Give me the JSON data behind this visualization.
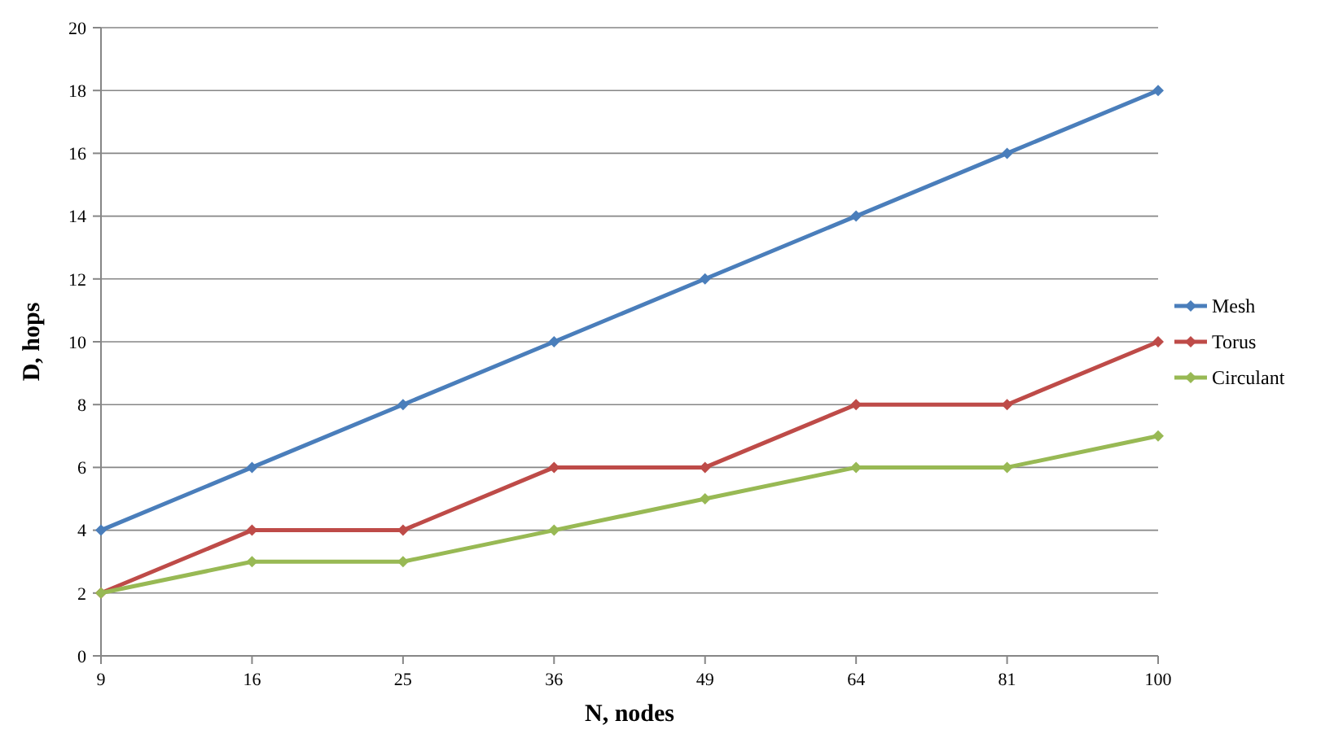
{
  "chart_data": {
    "type": "line",
    "xlabel": "N, nodes",
    "ylabel": "D, hops",
    "categories": [
      "9",
      "16",
      "25",
      "36",
      "49",
      "64",
      "81",
      "100"
    ],
    "series": [
      {
        "name": "Mesh",
        "color": "#4a7ebb",
        "values": [
          4,
          6,
          8,
          10,
          12,
          14,
          16,
          18
        ]
      },
      {
        "name": "Torus",
        "color": "#be4b48",
        "values": [
          2,
          4,
          4,
          6,
          6,
          8,
          8,
          10
        ]
      },
      {
        "name": "Circulant",
        "color": "#98b954",
        "values": [
          2,
          3,
          3,
          4,
          5,
          6,
          6,
          7
        ]
      }
    ],
    "ylim": [
      0,
      20
    ],
    "yticks": [
      0,
      2,
      4,
      6,
      8,
      10,
      12,
      14,
      16,
      18,
      20
    ],
    "grid": "y",
    "legend": "right",
    "marker": "diamond",
    "line_style": "solid"
  }
}
